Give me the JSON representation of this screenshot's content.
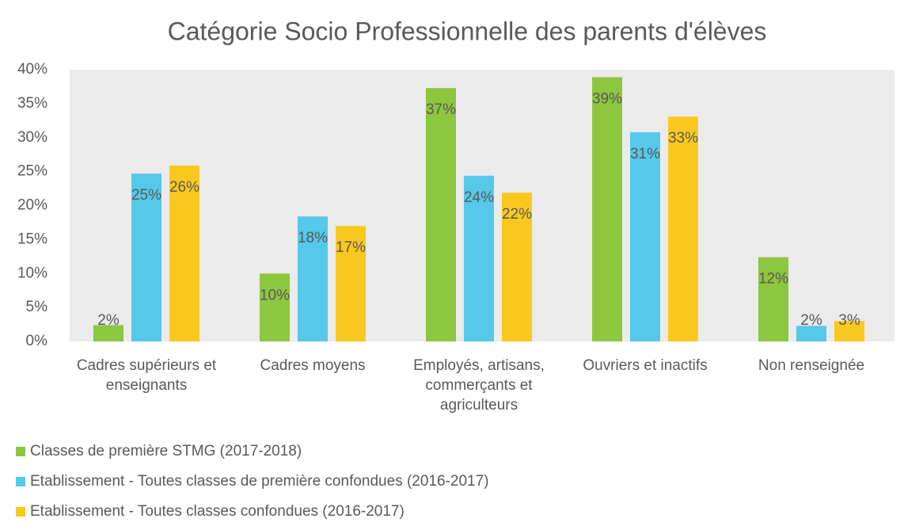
{
  "chart_data": {
    "type": "bar",
    "title": "Catégorie Socio Professionnelle des parents d'élèves",
    "categories": [
      "Cadres supérieurs et enseignants",
      "Cadres moyens",
      "Employés, artisans, commerçants et agriculteurs",
      "Ouvriers et inactifs",
      "Non renseignée"
    ],
    "series": [
      {
        "name": "Classes de première STMG (2017-2018)",
        "color": "#8dc63f",
        "values": [
          2.4,
          10.0,
          37.3,
          38.9,
          12.4
        ],
        "value_labels": [
          "2%",
          "10%",
          "37%",
          "39%",
          "12%"
        ]
      },
      {
        "name": "Etablissement - Toutes classes de première confondues (2016-2017)",
        "color": "#56c8ea",
        "values": [
          24.7,
          18.4,
          24.4,
          30.8,
          2.3
        ],
        "value_labels": [
          "25%",
          "18%",
          "24%",
          "31%",
          "2%"
        ]
      },
      {
        "name": "Etablissement - Toutes classes confondues (2016-2017)",
        "color": "#f9c81e",
        "values": [
          25.9,
          17.0,
          21.9,
          33.1,
          3.0
        ],
        "value_labels": [
          "26%",
          "17%",
          "22%",
          "33%",
          "3%"
        ]
      }
    ],
    "ylim": [
      0,
      40
    ],
    "yticks": [
      {
        "value": 0,
        "label": "0%"
      },
      {
        "value": 5,
        "label": "5%"
      },
      {
        "value": 10,
        "label": "10%"
      },
      {
        "value": 15,
        "label": "15%"
      },
      {
        "value": 20,
        "label": "20%"
      },
      {
        "value": 25,
        "label": "25%"
      },
      {
        "value": 30,
        "label": "30%"
      },
      {
        "value": 35,
        "label": "35%"
      },
      {
        "value": 40,
        "label": "40%"
      }
    ],
    "grid": false,
    "legend": "bottom-left"
  }
}
